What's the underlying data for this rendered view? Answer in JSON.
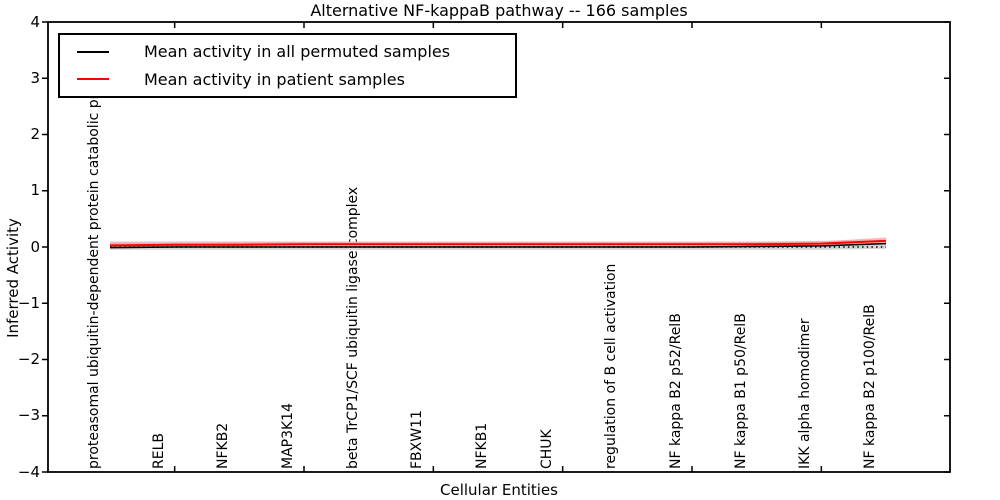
{
  "title": "Alternative NF-kappaB pathway -- 166 samples",
  "legend": {
    "items": [
      {
        "label": "Mean activity in all permuted samples",
        "color": "#000000"
      },
      {
        "label": "Mean activity in patient samples",
        "color": "#ff0000"
      }
    ]
  },
  "axes": {
    "ylabel": "Inferred Activity",
    "xlabel": "Cellular Entities",
    "ytick_labels": [
      "4",
      "3",
      "2",
      "1",
      "0",
      "−1",
      "−2",
      "−3",
      "−4"
    ],
    "ytick_values": [
      4,
      3,
      2,
      1,
      0,
      -1,
      -2,
      -3,
      -4
    ],
    "ylim": [
      -4,
      4
    ]
  },
  "chart_data": {
    "type": "line",
    "title": "Alternative NF-kappaB pathway -- 166 samples",
    "xlabel": "Cellular Entities",
    "ylabel": "Inferred Activity",
    "ylim": [
      -4,
      4
    ],
    "grid": false,
    "legend_position": "upper left",
    "zero_reference_line": {
      "style": "dotted",
      "color": "#000000",
      "y": 0
    },
    "categories": [
      "proteasomal ubiquitin-dependent protein catabolic pr",
      "RELB",
      "NFKB2",
      "MAP3K14",
      "beta TrCP1/SCF ubiquitin ligase complex",
      "FBXW11",
      "NFKB1",
      "CHUK",
      "regulation of B cell activation",
      "NF kappa B2 p52/RelB",
      "NF kappa B1 p50/RelB",
      "IKK alpha homodimer",
      "NF kappa B2 p100/RelB"
    ],
    "series": [
      {
        "name": "Mean activity in all permuted samples",
        "color": "#000000",
        "values": [
          -0.01,
          0.0,
          0.0,
          0.0,
          0.0,
          0.0,
          0.0,
          0.0,
          0.0,
          0.0,
          0.01,
          0.02,
          0.06
        ],
        "band_upper": [
          0.1,
          0.1,
          0.1,
          0.1,
          0.1,
          0.1,
          0.1,
          0.1,
          0.1,
          0.1,
          0.1,
          0.11,
          0.13
        ],
        "band_lower": [
          -0.05,
          -0.05,
          -0.05,
          -0.05,
          -0.05,
          -0.05,
          -0.05,
          -0.05,
          -0.05,
          -0.05,
          -0.05,
          -0.05,
          -0.03
        ],
        "band_color": "#c8c8c8"
      },
      {
        "name": "Mean activity in patient samples",
        "color": "#ff0000",
        "values": [
          0.03,
          0.04,
          0.04,
          0.05,
          0.05,
          0.05,
          0.05,
          0.05,
          0.05,
          0.05,
          0.05,
          0.06,
          0.11
        ],
        "band_upper": [
          0.08,
          0.08,
          0.09,
          0.09,
          0.09,
          0.09,
          0.09,
          0.09,
          0.09,
          0.09,
          0.09,
          0.1,
          0.17
        ],
        "band_lower": [
          0.0,
          0.0,
          0.0,
          0.01,
          0.01,
          0.01,
          0.01,
          0.01,
          0.01,
          0.01,
          0.01,
          0.02,
          0.06
        ],
        "band_color": "#ff9e9e"
      }
    ],
    "top_tick_category_indices": [
      1,
      3,
      5,
      7,
      9,
      11
    ]
  }
}
